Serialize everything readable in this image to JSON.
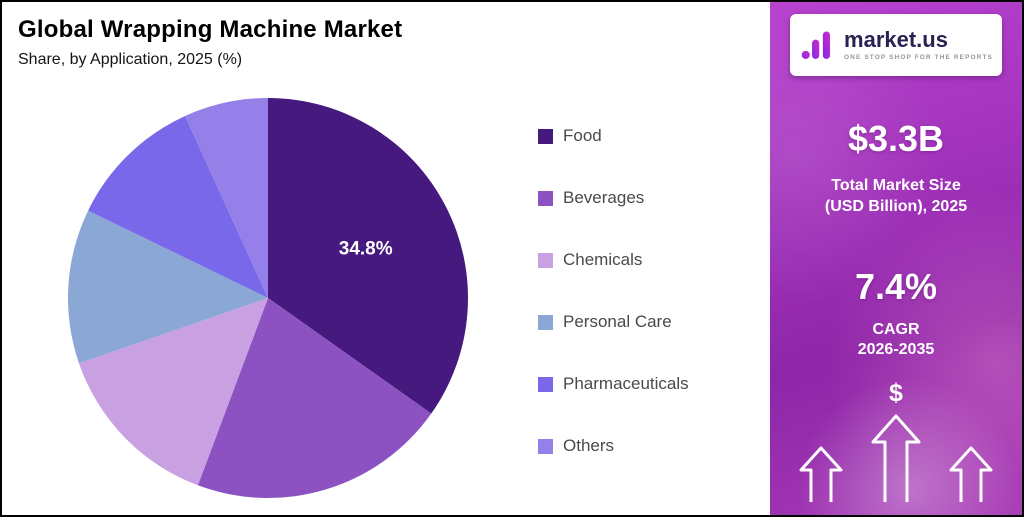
{
  "header": {
    "title": "Global Wrapping Machine Market",
    "subtitle": "Share, by Application, 2025 (%)"
  },
  "chart_data": {
    "type": "pie",
    "title": "Global Wrapping Machine Market Share, by Application, 2025 (%)",
    "unit": "%",
    "start_angle": "top",
    "direction": "clockwise",
    "legend_position": "right",
    "slices": [
      {
        "label": "Food",
        "value": 34.8,
        "color": "#45197d",
        "data_label": "34.8%"
      },
      {
        "label": "Beverages",
        "value": 20.9,
        "color": "#8c52c2"
      },
      {
        "label": "Chemicals",
        "value": 14.0,
        "color": "#c9a1e3"
      },
      {
        "label": "Personal Care",
        "value": 12.5,
        "color": "#8aa7d6"
      },
      {
        "label": "Pharmaceuticals",
        "value": 11.0,
        "color": "#7a68ea"
      },
      {
        "label": "Others",
        "value": 6.8,
        "color": "#9480e8"
      }
    ]
  },
  "sidebar": {
    "logo": {
      "brand": "market.us",
      "tagline": "ONE STOP SHOP FOR THE REPORTS"
    },
    "market_size": {
      "value": "$3.3B",
      "caption_line1": "Total Market Size",
      "caption_line2": "(USD Billion), 2025"
    },
    "cagr": {
      "value": "7.4%",
      "label_line1": "CAGR",
      "label_line2": "2026-2035"
    },
    "dollar_symbol": "$"
  }
}
